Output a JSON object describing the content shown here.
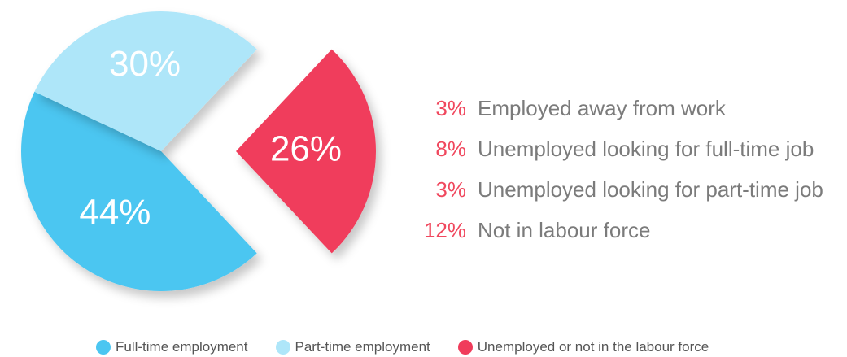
{
  "chart_data": {
    "type": "pie",
    "exploded_slice": "Unemployed or not in the labour force",
    "slices": [
      {
        "label": "Full-time employment",
        "value": 44,
        "display": "44%",
        "color": "#4bc6f1"
      },
      {
        "label": "Part-time employment",
        "value": 30,
        "display": "30%",
        "color": "#aee6f9"
      },
      {
        "label": "Unemployed or not in the labour force",
        "value": 26,
        "display": "26%",
        "color": "#f03c5b"
      }
    ],
    "breakdown": [
      {
        "pct": "3%",
        "label": "Employed away from work"
      },
      {
        "pct": "8%",
        "label": "Unemployed looking for full-time job"
      },
      {
        "pct": "3%",
        "label": "Unemployed looking for part-time job"
      },
      {
        "pct": "12%",
        "label": "Not in labour force"
      }
    ],
    "legend": [
      {
        "label": "Full-time employment",
        "color": "#4bc6f1"
      },
      {
        "label": "Part-time employment",
        "color": "#aee6f9"
      },
      {
        "label": "Unemployed or not in the labour force",
        "color": "#f03c5b"
      }
    ]
  }
}
